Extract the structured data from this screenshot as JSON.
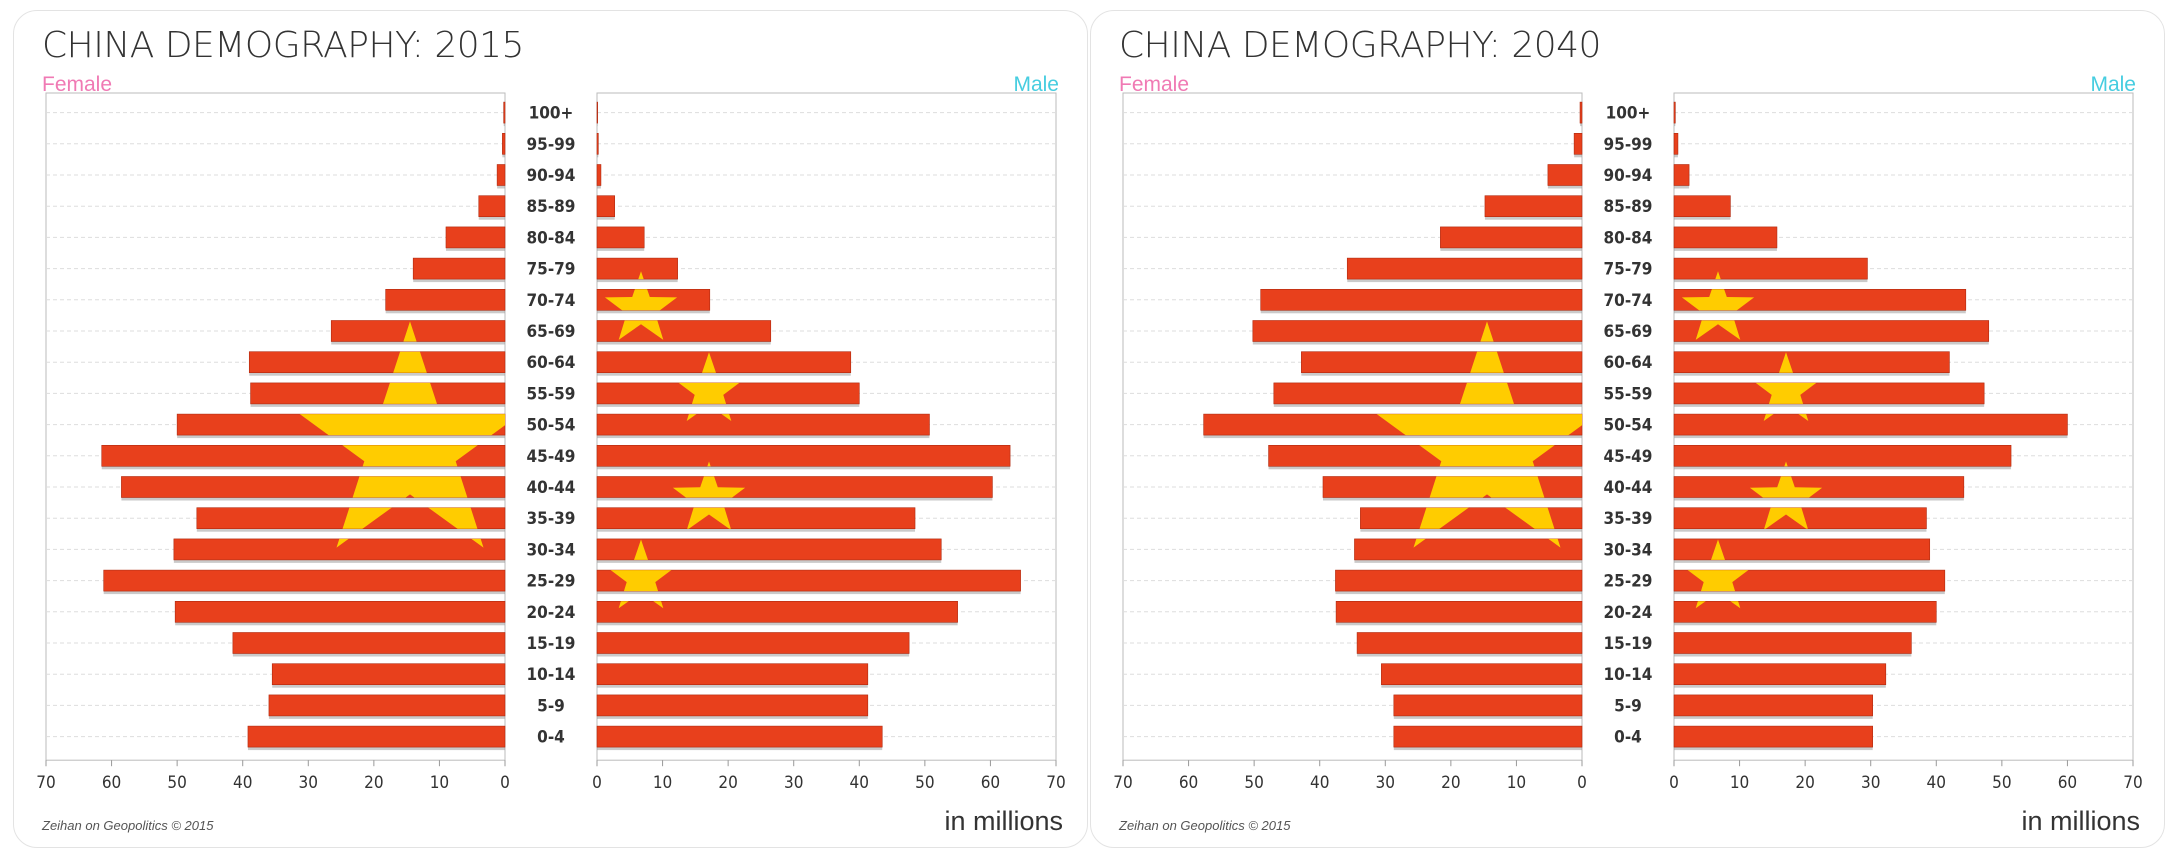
{
  "colors": {
    "bar": "#e8401c",
    "bar_dark": "#b02a10",
    "star": "#ffcc00",
    "female": "#f07ab4",
    "male": "#46cde0"
  },
  "units": "in millions",
  "chart_data": [
    {
      "type": "bar",
      "orientation": "horizontal-pyramid",
      "title": "CHINA DEMOGRAPHY: 2015",
      "legend": {
        "left": "Female",
        "right": "Male"
      },
      "credit": "Zeihan on Geopolitics © 2015",
      "units": "in millions",
      "xlim": [
        0,
        70
      ],
      "ticks": [
        70,
        60,
        50,
        40,
        30,
        20,
        10,
        0
      ],
      "categories": [
        "100+",
        "95-99",
        "90-94",
        "85-89",
        "80-84",
        "75-79",
        "70-74",
        "65-69",
        "60-64",
        "55-59",
        "50-54",
        "45-49",
        "40-44",
        "35-39",
        "30-34",
        "25-29",
        "20-24",
        "15-19",
        "10-14",
        "5-9",
        "0-4"
      ],
      "series": [
        {
          "name": "Female",
          "values": [
            0.2,
            0.4,
            1.2,
            4,
            9,
            14,
            18.2,
            26.5,
            39,
            38.8,
            50,
            61.5,
            58.5,
            47,
            50.5,
            61.2,
            50.3,
            41.5,
            35.5,
            36,
            39.2
          ]
        },
        {
          "name": "Male",
          "values": [
            0.1,
            0.2,
            0.6,
            2.7,
            7.2,
            12.3,
            17.2,
            26.5,
            38.7,
            40,
            50.7,
            63,
            60.3,
            48.5,
            52.5,
            64.6,
            55,
            47.6,
            41.3,
            41.3,
            43.5
          ]
        }
      ]
    },
    {
      "type": "bar",
      "orientation": "horizontal-pyramid",
      "title": "CHINA DEMOGRAPHY: 2040",
      "legend": {
        "left": "Female",
        "right": "Male"
      },
      "credit": "Zeihan on Geopolitics © 2015",
      "units": "in millions",
      "xlim": [
        0,
        70
      ],
      "ticks": [
        70,
        60,
        50,
        40,
        30,
        20,
        10,
        0
      ],
      "categories": [
        "100+",
        "95-99",
        "90-94",
        "85-89",
        "80-84",
        "75-79",
        "70-74",
        "65-69",
        "60-64",
        "55-59",
        "50-54",
        "45-49",
        "40-44",
        "35-39",
        "30-34",
        "25-29",
        "20-24",
        "15-19",
        "10-14",
        "5-9",
        "0-4"
      ],
      "series": [
        {
          "name": "Female",
          "values": [
            0.3,
            1.2,
            5.2,
            14.8,
            21.6,
            35.8,
            49,
            50.2,
            42.8,
            47,
            57.7,
            47.8,
            39.5,
            33.8,
            34.7,
            37.6,
            37.5,
            34.3,
            30.6,
            28.7,
            28.7
          ]
        },
        {
          "name": "Male",
          "values": [
            0.2,
            0.6,
            2.3,
            8.6,
            15.7,
            29.5,
            44.5,
            48,
            42,
            47.3,
            60,
            51.4,
            44.2,
            38.5,
            39,
            41.3,
            40,
            36.2,
            32.3,
            30.3,
            30.3
          ]
        }
      ]
    }
  ]
}
